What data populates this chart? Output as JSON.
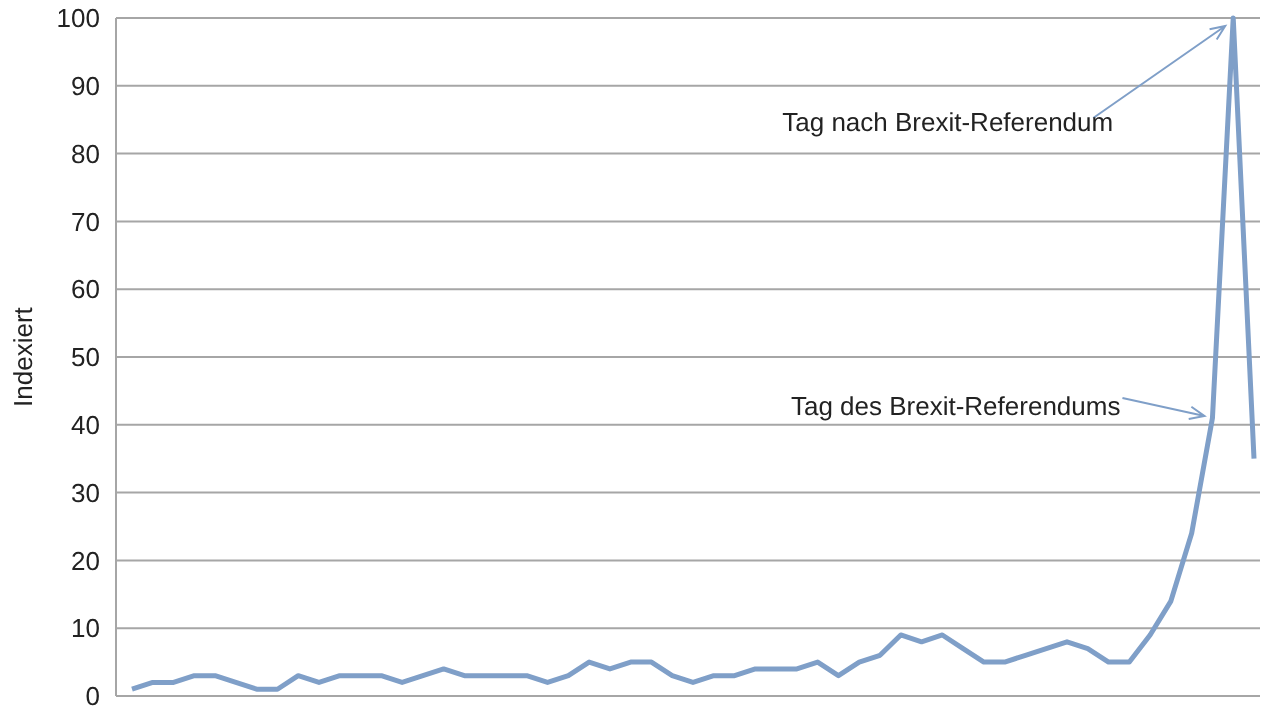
{
  "chart_data": {
    "type": "line",
    "ylabel": "Indexiert",
    "categories": [
      null,
      null,
      null,
      null,
      null,
      null,
      null,
      null,
      null,
      null,
      null,
      null,
      null,
      null,
      null,
      null,
      null,
      null,
      null,
      null,
      null,
      null,
      null,
      null,
      null,
      null,
      null,
      null,
      null,
      null,
      null,
      null,
      null,
      null,
      null,
      null,
      null,
      null,
      null,
      null,
      null,
      null,
      null,
      null,
      null,
      null,
      null,
      null,
      null,
      null,
      null,
      null,
      null,
      null,
      null
    ],
    "series": [
      {
        "color": "#7f9fc8",
        "values": [
          1,
          2,
          2,
          3,
          3,
          2,
          1,
          1,
          3,
          2,
          3,
          3,
          3,
          2,
          3,
          4,
          3,
          3,
          3,
          3,
          2,
          3,
          5,
          4,
          5,
          5,
          3,
          2,
          3,
          3,
          4,
          4,
          4,
          5,
          3,
          5,
          6,
          9,
          8,
          9,
          7,
          5,
          5,
          6,
          7,
          8,
          7,
          5,
          5,
          9,
          14,
          24,
          41,
          100,
          35
        ]
      }
    ],
    "ylim": [
      0,
      100
    ],
    "yticks": [
      0,
      10,
      20,
      30,
      40,
      50,
      60,
      70,
      80,
      90,
      100
    ],
    "grid": "y",
    "marker": "none",
    "line_style": "solid",
    "annotations": [
      "Tag nach Brexit-Referendum",
      "Tag des Brexit-Referendums"
    ]
  }
}
